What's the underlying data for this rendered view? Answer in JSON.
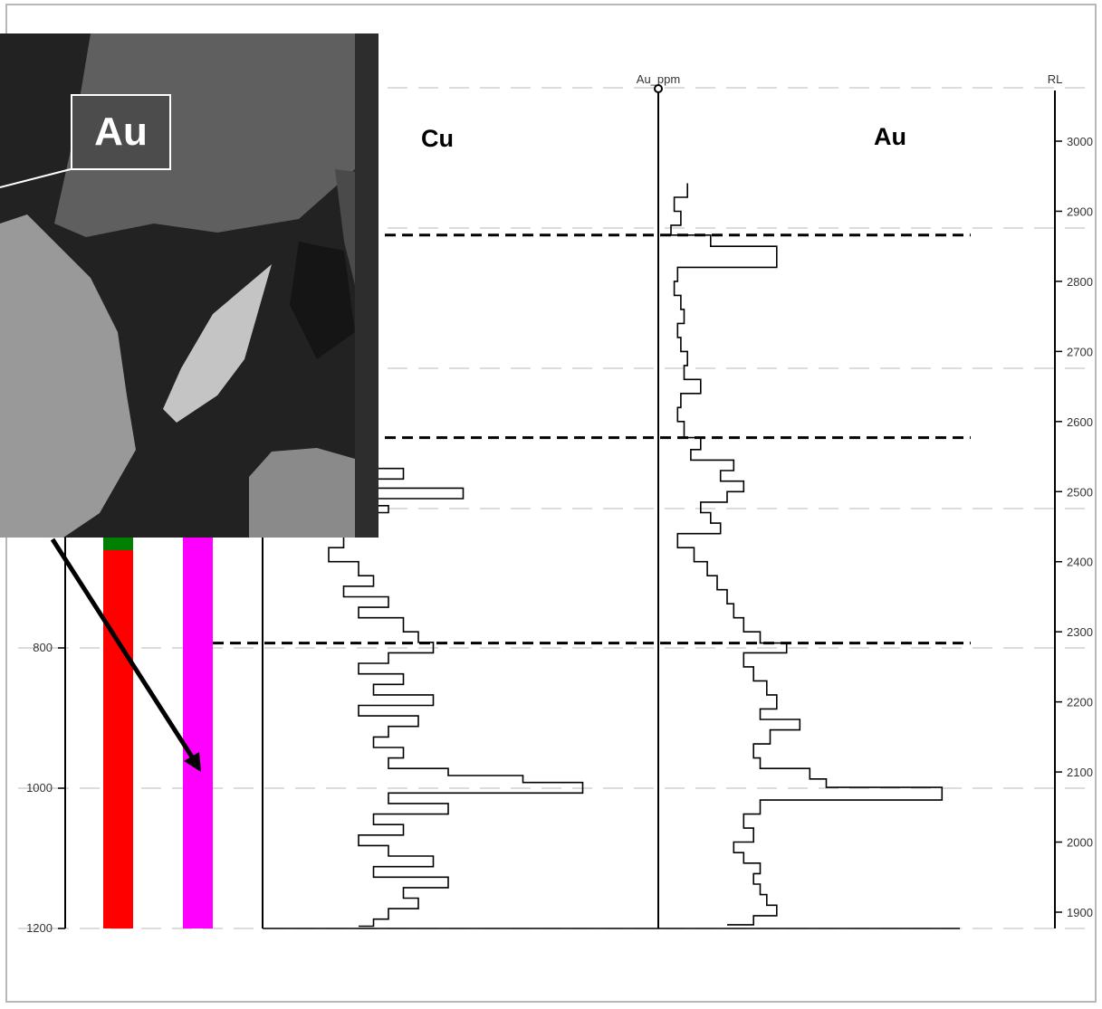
{
  "chart_data": {
    "type": "line",
    "left_axis": {
      "ticks": [
        "800",
        "1000",
        "1200"
      ],
      "values": [
        800,
        1000,
        1200
      ]
    },
    "right_axis": {
      "label": "RL",
      "ticks": [
        "3000",
        "2900",
        "2800",
        "2700",
        "2600",
        "2500",
        "2400",
        "2300",
        "2200",
        "2100",
        "2000",
        "1900"
      ],
      "values": [
        3000,
        2900,
        2800,
        2700,
        2600,
        2500,
        2400,
        2300,
        2200,
        2100,
        2000,
        1900
      ],
      "range": [
        1875,
        3060
      ]
    },
    "tracks": {
      "cu_title": "Cu",
      "au_title": "Au",
      "au_header": "Au_ppm"
    },
    "boundaries_rl": [
      2866,
      2577,
      2284
    ],
    "series": [
      {
        "name": "Cu",
        "rl": [
          2736,
          2728,
          2708,
          2700,
          2690,
          2680,
          2562,
          2545,
          2533,
          2518,
          2505,
          2490,
          2480,
          2470,
          2455,
          2440,
          2420,
          2400,
          2380,
          2365,
          2350,
          2335,
          2320,
          2300,
          2285,
          2270,
          2255,
          2240,
          2225,
          2210,
          2195,
          2180,
          2165,
          2150,
          2135,
          2120,
          2105,
          2095,
          2085,
          2070,
          2055,
          2040,
          2025,
          2010,
          1995,
          1980,
          1965,
          1950,
          1935,
          1920,
          1905,
          1890,
          1880
        ],
        "values": [
          0.15,
          0.05,
          0.2,
          0.1,
          0.25,
          0.05,
          0.15,
          0.1,
          0.35,
          0.2,
          0.55,
          0.1,
          0.3,
          0.05,
          0.1,
          0.15,
          0.1,
          0.2,
          0.25,
          0.15,
          0.3,
          0.2,
          0.35,
          0.4,
          0.45,
          0.3,
          0.2,
          0.35,
          0.25,
          0.45,
          0.2,
          0.4,
          0.3,
          0.25,
          0.35,
          0.3,
          0.5,
          0.75,
          0.95,
          0.3,
          0.5,
          0.25,
          0.35,
          0.2,
          0.3,
          0.45,
          0.25,
          0.5,
          0.35,
          0.4,
          0.3,
          0.25,
          0.2
        ]
      },
      {
        "name": "Au",
        "rl": [
          2940,
          2920,
          2900,
          2880,
          2866,
          2850,
          2820,
          2800,
          2780,
          2760,
          2740,
          2720,
          2700,
          2680,
          2660,
          2640,
          2620,
          2600,
          2577,
          2560,
          2545,
          2530,
          2515,
          2500,
          2485,
          2470,
          2455,
          2440,
          2420,
          2400,
          2380,
          2360,
          2340,
          2320,
          2300,
          2284,
          2270,
          2250,
          2230,
          2210,
          2190,
          2175,
          2160,
          2140,
          2120,
          2105,
          2090,
          2078,
          2060,
          2040,
          2020,
          2000,
          1985,
          1970,
          1955,
          1940,
          1925,
          1910,
          1895,
          1882
        ],
        "values": [
          0.08,
          0.04,
          0.06,
          0.03,
          0.15,
          0.35,
          0.05,
          0.04,
          0.06,
          0.07,
          0.05,
          0.06,
          0.08,
          0.07,
          0.12,
          0.06,
          0.05,
          0.07,
          0.12,
          0.09,
          0.22,
          0.18,
          0.25,
          0.2,
          0.12,
          0.15,
          0.18,
          0.05,
          0.1,
          0.14,
          0.17,
          0.2,
          0.22,
          0.25,
          0.3,
          0.38,
          0.25,
          0.28,
          0.32,
          0.35,
          0.3,
          0.42,
          0.33,
          0.28,
          0.3,
          0.45,
          0.5,
          0.85,
          0.3,
          0.25,
          0.28,
          0.22,
          0.25,
          0.3,
          0.28,
          0.3,
          0.32,
          0.35,
          0.28,
          0.2
        ]
      }
    ],
    "strip_columns": [
      {
        "colors": [
          "#008000",
          "#ff0000"
        ]
      },
      {
        "colors": [
          "#ff00ff"
        ]
      }
    ]
  },
  "photo": {
    "label": "Au"
  }
}
